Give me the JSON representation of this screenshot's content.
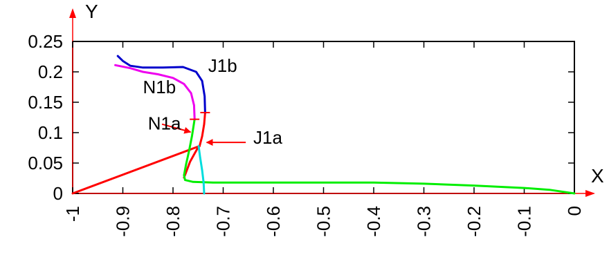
{
  "chart_data": {
    "type": "line",
    "title": "",
    "xlabel": "X",
    "ylabel": "Y",
    "xlim": [
      -1,
      0
    ],
    "ylim": [
      0,
      0.25
    ],
    "grid": false,
    "legend": "none",
    "x_ticks": [
      {
        "value": -1,
        "label": "-1"
      },
      {
        "value": -0.9,
        "label": "-0.9"
      },
      {
        "value": -0.8,
        "label": "-0.8"
      },
      {
        "value": -0.7,
        "label": "-0.7"
      },
      {
        "value": -0.6,
        "label": "-0.6"
      },
      {
        "value": -0.5,
        "label": "-0.5"
      },
      {
        "value": -0.4,
        "label": "-0.4"
      },
      {
        "value": -0.3,
        "label": "-0.3"
      },
      {
        "value": -0.2,
        "label": "-0.2"
      },
      {
        "value": -0.1,
        "label": "-0.1"
      },
      {
        "value": 0,
        "label": "0"
      }
    ],
    "y_ticks": [
      {
        "value": 0,
        "label": "0"
      },
      {
        "value": 0.05,
        "label": "0.05"
      },
      {
        "value": 0.1,
        "label": "0.1"
      },
      {
        "value": 0.15,
        "label": "0.15"
      },
      {
        "value": 0.2,
        "label": "0.2"
      },
      {
        "value": 0.25,
        "label": "0.25"
      }
    ],
    "series": [
      {
        "color": "#ff0000",
        "points": [
          [
            -1,
            0
          ],
          [
            -0.747,
            0.078
          ]
        ]
      },
      {
        "color": "#ff0000",
        "points": [
          [
            -0.778,
            0.026
          ],
          [
            -0.774,
            0.035
          ],
          [
            -0.766,
            0.052
          ],
          [
            -0.758,
            0.064
          ],
          [
            -0.752,
            0.073
          ],
          [
            -0.747,
            0.078
          ],
          [
            -0.742,
            0.094
          ],
          [
            -0.738,
            0.114
          ],
          [
            -0.736,
            0.133
          ]
        ]
      },
      {
        "color": "#00ee00",
        "points": [
          [
            -0.757,
            0.122
          ],
          [
            -0.762,
            0.095
          ],
          [
            -0.768,
            0.07
          ],
          [
            -0.774,
            0.048
          ],
          [
            -0.778,
            0.03
          ],
          [
            -0.776,
            0.022
          ],
          [
            -0.76,
            0.019
          ],
          [
            -0.72,
            0.018
          ],
          [
            -0.6,
            0.018
          ],
          [
            -0.4,
            0.018
          ],
          [
            -0.3,
            0.016
          ],
          [
            -0.2,
            0.013
          ],
          [
            -0.1,
            0.009
          ],
          [
            -0.05,
            0.006
          ],
          [
            0,
            0
          ]
        ]
      },
      {
        "color": "#00dddd",
        "points": [
          [
            -0.749,
            0.078
          ],
          [
            -0.746,
            0.06
          ],
          [
            -0.742,
            0.038
          ],
          [
            -0.739,
            0.018
          ],
          [
            -0.738,
            0
          ]
        ]
      },
      {
        "color": "#0000cc",
        "points": [
          [
            -0.736,
            0.133
          ],
          [
            -0.737,
            0.16
          ],
          [
            -0.742,
            0.185
          ],
          [
            -0.754,
            0.2
          ],
          [
            -0.78,
            0.208
          ],
          [
            -0.82,
            0.207
          ],
          [
            -0.86,
            0.207
          ],
          [
            -0.885,
            0.21
          ],
          [
            -0.9,
            0.218
          ],
          [
            -0.91,
            0.226
          ]
        ]
      },
      {
        "color": "#ee00ee",
        "points": [
          [
            -0.757,
            0.122
          ],
          [
            -0.758,
            0.145
          ],
          [
            -0.764,
            0.165
          ],
          [
            -0.778,
            0.18
          ],
          [
            -0.8,
            0.19
          ],
          [
            -0.83,
            0.196
          ],
          [
            -0.86,
            0.2
          ],
          [
            -0.885,
            0.206
          ],
          [
            -0.915,
            0.211
          ]
        ]
      }
    ],
    "tick_marks": [
      {
        "x": -0.757,
        "y": 0.122,
        "color": "#ff0000"
      },
      {
        "x": -0.736,
        "y": 0.133,
        "color": "#ff0000"
      }
    ],
    "annotations": [
      {
        "text": "J1b",
        "x": -0.73,
        "y": 0.2
      },
      {
        "text": "N1b",
        "x": -0.86,
        "y": 0.165
      },
      {
        "text": "N1a",
        "x": -0.85,
        "y": 0.105
      },
      {
        "text": "J1a",
        "x": -0.64,
        "y": 0.082
      }
    ],
    "arrows": [
      {
        "from": [
          -0.822,
          0.114
        ],
        "to": [
          -0.765,
          0.101
        ],
        "color": "#ff0000"
      },
      {
        "from": [
          -0.655,
          0.084
        ],
        "to": [
          -0.733,
          0.084
        ],
        "color": "#ff0000"
      }
    ]
  }
}
